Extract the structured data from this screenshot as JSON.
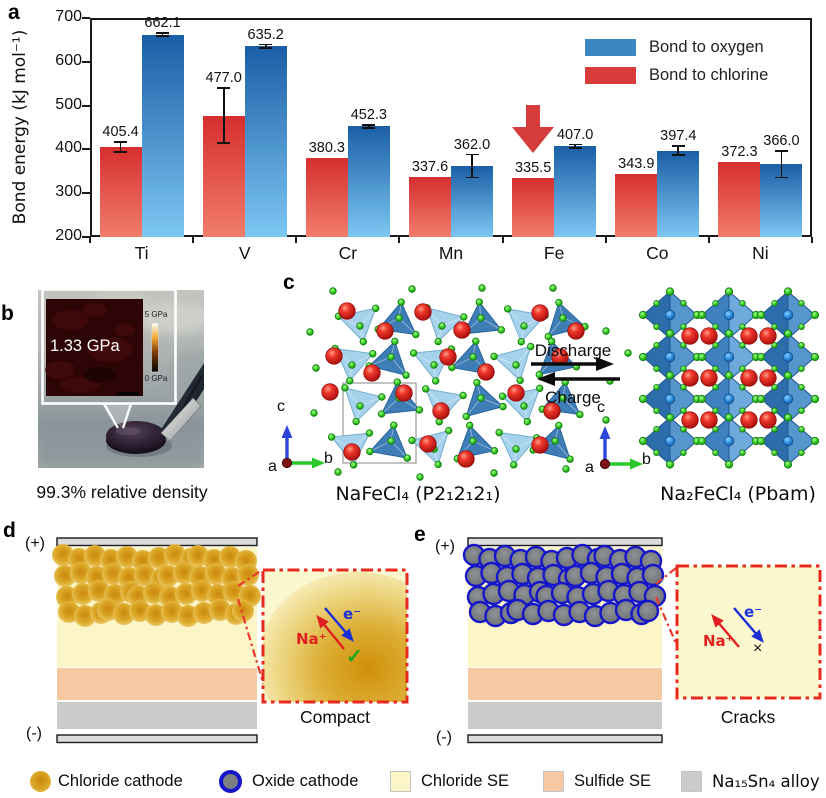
{
  "chart_data": {
    "type": "bar",
    "categories": [
      "Ti",
      "V",
      "Cr",
      "Mn",
      "Fe",
      "Co",
      "Ni"
    ],
    "series": [
      {
        "name": "Bond to chlorine",
        "values": [
          405.4,
          477.0,
          380.3,
          337.6,
          335.5,
          343.9,
          372.3
        ],
        "errors": [
          12,
          63,
          0,
          0,
          0,
          0,
          0
        ],
        "color_top": "#d62e2e",
        "color_bottom": "#f17d6c",
        "legend_color": "#d93a3a"
      },
      {
        "name": "Bond to oxygen",
        "values": [
          662.1,
          635.2,
          452.3,
          362.0,
          407.0,
          397.4,
          366.0
        ],
        "errors": [
          3,
          4,
          4,
          26,
          4,
          10,
          30
        ],
        "color_top": "#1a5fa6",
        "color_bottom": "#7dc7f3",
        "legend_color": "#3b87c3"
      }
    ],
    "ylabel": "Bond energy (kJ mol⁻¹)",
    "ylim": [
      200,
      700
    ],
    "yticks": [
      200,
      300,
      400,
      500,
      600,
      700
    ],
    "legend": [
      {
        "label": "Bond to oxygen",
        "series": 1
      },
      {
        "label": "Bond to chlorine",
        "series": 0
      }
    ],
    "legend_position": "top-right",
    "grid": false,
    "annotation": {
      "type": "down-arrow",
      "category": "Fe",
      "series": 0,
      "color": "#d73c3c"
    }
  },
  "panel_a": {
    "letter": "a"
  },
  "panel_b": {
    "letter": "b",
    "inset_value": "1.33 GPa",
    "scale_max": "5 GPa",
    "scale_min": "0 GPa",
    "caption": "99.3% relative density"
  },
  "panel_c": {
    "letter": "c",
    "arrow_forward": "Discharge",
    "arrow_backward": "Charge",
    "left_label": "NaFeCl₄ (P2₁2₁2₁)",
    "right_label": "Na₂FeCl₄ (Pbam)",
    "axis_a": "a",
    "axis_b": "b",
    "axis_c": "c"
  },
  "panel_d": {
    "letter": "d",
    "electrode_positive": "(+)",
    "electrode_negative": "(-)",
    "ion_label": "Na⁺",
    "electron_label": "e⁻",
    "status_mark": "✓",
    "caption": "Compact"
  },
  "panel_e": {
    "letter": "e",
    "electrode_positive": "(+)",
    "electrode_negative": "(-)",
    "ion_label": "Na⁺",
    "electron_label": "e⁻",
    "status_mark": "×",
    "caption": "Cracks"
  },
  "bottom_legend": {
    "items": [
      {
        "label": "Chloride cathode",
        "swatch": "gold-sphere"
      },
      {
        "label": "Oxide cathode",
        "swatch": "gray-sphere-blue-ring"
      },
      {
        "label": "Chloride SE",
        "swatch": "square",
        "color": "#fbf5c7"
      },
      {
        "label": "Sulfide SE",
        "swatch": "square",
        "color": "#f6c9a3"
      },
      {
        "label": "Na₁₅Sn₄ alloy",
        "swatch": "square",
        "color": "#cbcbcb"
      }
    ]
  }
}
